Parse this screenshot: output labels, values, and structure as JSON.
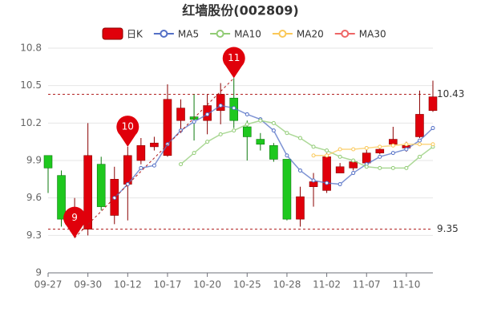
{
  "chart_data": {
    "type": "candlestick",
    "title": "红墙股份(002809)",
    "categories": [
      "09-27",
      null,
      null,
      "09-30",
      null,
      null,
      "10-12",
      null,
      null,
      "10-17",
      null,
      null,
      "10-20",
      null,
      null,
      "10-25",
      null,
      null,
      "10-28",
      null,
      null,
      "11-02",
      null,
      null,
      "11-07",
      null,
      null,
      "11-10",
      null,
      null
    ],
    "ylim": [
      9,
      10.8
    ],
    "yticks": [
      9,
      9.3,
      9.6,
      9.9,
      10.2,
      10.5,
      10.8
    ],
    "grid": true,
    "series": [
      {
        "name": "日K",
        "type": "candlestick",
        "color": "#e0000b",
        "up_color": "#e0000b",
        "down_color": "#1ec81e",
        "open": [
          9.94,
          9.78,
          9.33,
          9.35,
          9.87,
          9.46,
          9.71,
          9.9,
          10.01,
          9.94,
          10.22,
          10.25,
          10.22,
          10.3,
          10.4,
          10.17,
          10.07,
          10.02,
          9.91,
          9.43,
          9.69,
          9.66,
          9.8,
          9.84,
          9.88,
          9.96,
          10.03,
          10.0,
          10.09,
          10.3
        ],
        "close": [
          9.84,
          9.43,
          9.36,
          9.94,
          9.53,
          9.75,
          9.94,
          10.02,
          10.04,
          10.39,
          10.32,
          10.23,
          10.34,
          10.43,
          10.22,
          10.09,
          10.03,
          9.91,
          9.43,
          9.61,
          9.73,
          9.93,
          9.85,
          9.89,
          9.96,
          9.99,
          10.07,
          10.02,
          10.27,
          10.41
        ],
        "high": [
          9.94,
          9.82,
          9.6,
          10.2,
          9.93,
          9.85,
          10.01,
          10.08,
          10.09,
          10.51,
          10.39,
          10.43,
          10.43,
          10.52,
          10.56,
          10.22,
          10.12,
          10.04,
          9.91,
          9.69,
          9.8,
          9.96,
          9.88,
          9.91,
          10.01,
          10.0,
          10.17,
          10.05,
          10.46,
          10.54
        ],
        "low": [
          9.64,
          9.37,
          9.28,
          9.3,
          9.5,
          9.39,
          9.42,
          9.87,
          9.98,
          9.93,
          10.12,
          10.06,
          10.11,
          10.19,
          10.16,
          9.9,
          9.98,
          9.89,
          9.42,
          9.37,
          9.53,
          9.64,
          9.8,
          9.82,
          9.84,
          9.95,
          10.02,
          9.97,
          10.08,
          10.29
        ]
      },
      {
        "name": "MA5",
        "type": "line",
        "color": "#5470c6",
        "values": [
          null,
          null,
          null,
          null,
          null,
          9.6,
          9.71,
          9.84,
          9.86,
          10.03,
          10.14,
          10.21,
          10.27,
          10.34,
          10.32,
          10.27,
          10.23,
          10.14,
          9.94,
          9.82,
          9.74,
          9.72,
          9.71,
          9.8,
          9.87,
          9.93,
          9.96,
          9.99,
          10.06,
          10.16
        ]
      },
      {
        "name": "MA10",
        "type": "line",
        "color": "#91cc75",
        "values": [
          null,
          null,
          null,
          null,
          null,
          null,
          null,
          null,
          null,
          null,
          9.87,
          9.96,
          10.05,
          10.11,
          10.14,
          10.19,
          10.22,
          10.2,
          10.12,
          10.08,
          10.01,
          9.98,
          9.93,
          9.9,
          9.85,
          9.84,
          9.84,
          9.84,
          9.93,
          10.01
        ]
      },
      {
        "name": "MA20",
        "type": "line",
        "color": "#fac858",
        "values": [
          null,
          null,
          null,
          null,
          null,
          null,
          null,
          null,
          null,
          null,
          null,
          null,
          null,
          null,
          null,
          null,
          null,
          null,
          null,
          null,
          9.94,
          9.94,
          9.99,
          9.99,
          10.0,
          10.01,
          10.02,
          10.03,
          10.03,
          10.03
        ]
      },
      {
        "name": "MA30",
        "type": "line",
        "color": "#ee6666",
        "values": [
          null,
          null,
          null,
          null,
          null,
          null,
          null,
          null,
          null,
          null,
          null,
          null,
          null,
          null,
          null,
          null,
          null,
          null,
          null,
          null,
          null,
          null,
          null,
          null,
          null,
          null,
          null,
          null,
          null,
          null
        ]
      }
    ],
    "reference_lines": [
      {
        "value": 10.43,
        "label": "10.43",
        "color": "#b22222"
      },
      {
        "value": 9.35,
        "label": "9.35",
        "color": "#b22222"
      }
    ],
    "annotations": [
      {
        "text": "9",
        "value": 9.28,
        "color": "#e0000b"
      },
      {
        "text": "11",
        "value": 10.56,
        "color": "#e0000b"
      },
      {
        "text": "10",
        "value": 10.01,
        "color": "#e0000b"
      }
    ]
  }
}
